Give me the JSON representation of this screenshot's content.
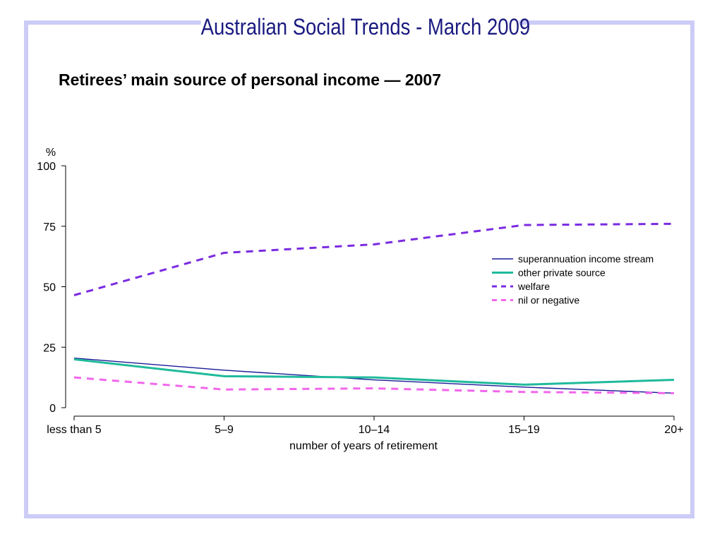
{
  "header": {
    "title": "Australian Social Trends - March 2009"
  },
  "chart_data": {
    "type": "line",
    "title": "Retirees’ main source of personal income — 2007",
    "xlabel": "number of years of retirement",
    "ylabel": "%",
    "categories": [
      "less than 5",
      "5–9",
      "10–14",
      "15–19",
      "20+"
    ],
    "ylim": [
      0,
      100
    ],
    "yticks": [
      0,
      25,
      50,
      75,
      100
    ],
    "grid": false,
    "legend_position": "right",
    "series": [
      {
        "name": "superannuation income stream",
        "values": [
          20.5,
          15.5,
          11.5,
          8.5,
          6
        ],
        "color": "#1a1a99",
        "style": "solid-thin"
      },
      {
        "name": "other private source",
        "values": [
          20,
          13,
          12.5,
          9.5,
          11.5
        ],
        "color": "#1fba9b",
        "style": "solid-thick"
      },
      {
        "name": "welfare",
        "values": [
          46.5,
          64,
          67.5,
          75.5,
          76
        ],
        "color": "#7b2be2",
        "style": "dashed"
      },
      {
        "name": "nil or negative",
        "values": [
          12.5,
          7.5,
          8,
          6.5,
          6
        ],
        "color": "#f266ec",
        "style": "dashed"
      }
    ]
  }
}
